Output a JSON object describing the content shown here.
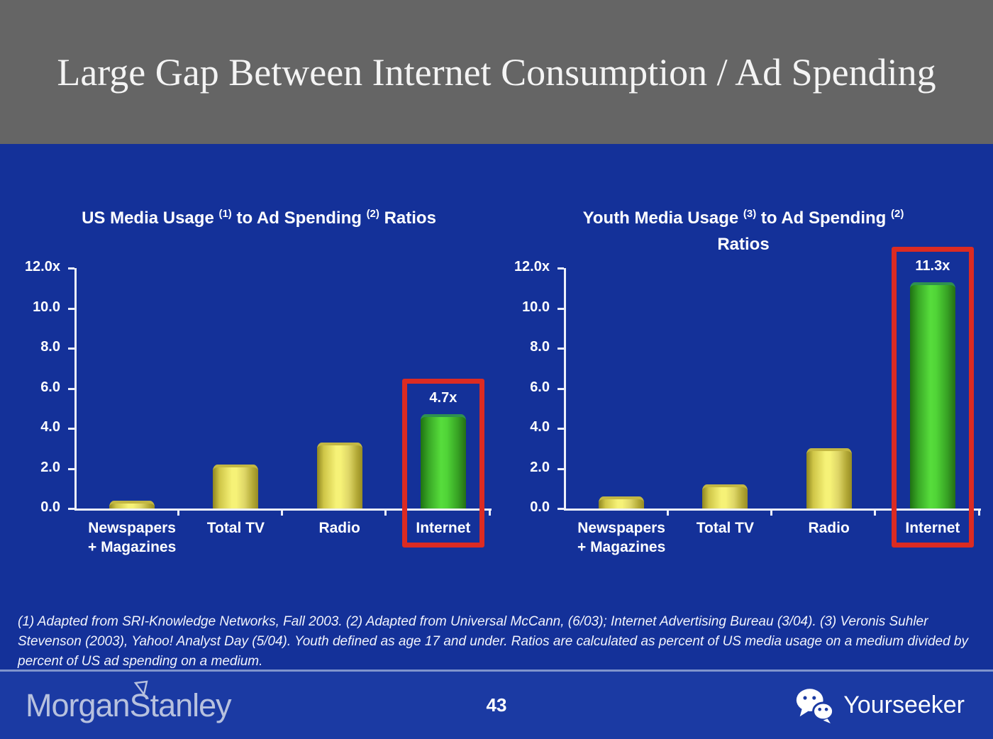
{
  "header": {
    "title": "Large Gap Between Internet Consumption / Ad Spending"
  },
  "footnote": "(1) Adapted from SRI-Knowledge Networks, Fall 2003.  (2) Adapted from Universal McCann, (6/03); Internet Advertising Bureau (3/04). (3) Veronis Suhler Stevenson (2003), Yahoo! Analyst Day (5/04).  Youth defined as age 17 and under.  Ratios are calculated as percent of US media usage on a medium divided by percent of US ad spending on a medium.",
  "footer": {
    "brand_left": {
      "part1": "Morgan",
      "part2": "Stanley"
    },
    "page_number": "43",
    "brand_right": "Yourseeker"
  },
  "colors": {
    "header_gray": "#656565",
    "body_blue": "#143199",
    "footer_blue": "#1B3AA3",
    "bar_yellow": "#F0EC65",
    "bar_green": "#4CCB33",
    "highlight_red": "#DC2B22",
    "axis_white": "#EDF0FA",
    "logo_silver": "#B7C1DE"
  },
  "chart_data": [
    {
      "type": "bar",
      "title": "US Media Usage (1) to Ad Spending (2) Ratios",
      "title_lines": [
        [
          {
            "text": "US Media Usage "
          },
          {
            "sup": "(1)"
          },
          {
            "text": " to Ad Spending "
          },
          {
            "sup": "(2)"
          },
          {
            "text": " Ratios"
          }
        ]
      ],
      "categories": [
        "Newspapers\n+ Magazines",
        "Total TV",
        "Radio",
        "Internet"
      ],
      "values": [
        0.4,
        2.2,
        3.3,
        4.7
      ],
      "highlight_index": 3,
      "highlight_label": "4.7x",
      "xlabel": "",
      "ylabel": "",
      "ylim": [
        0,
        12
      ],
      "grid": false,
      "yticks": [
        {
          "label": "12.0x",
          "value": 12
        },
        {
          "label": "10.0",
          "value": 10
        },
        {
          "label": "8.0",
          "value": 8
        },
        {
          "label": "6.0",
          "value": 6
        },
        {
          "label": "4.0",
          "value": 4
        },
        {
          "label": "2.0",
          "value": 2
        },
        {
          "label": "0.0",
          "value": 0
        }
      ]
    },
    {
      "type": "bar",
      "title": "Youth Media Usage (3) to Ad Spending (2) Ratios",
      "title_lines": [
        [
          {
            "text": "Youth Media Usage "
          },
          {
            "sup": "(3)"
          },
          {
            "text": " to Ad Spending "
          },
          {
            "sup": "(2)"
          }
        ],
        [
          {
            "text": "Ratios"
          }
        ]
      ],
      "categories": [
        "Newspapers\n+ Magazines",
        "Total TV",
        "Radio",
        "Internet"
      ],
      "values": [
        0.6,
        1.2,
        3.0,
        11.3
      ],
      "highlight_index": 3,
      "highlight_label": "11.3x",
      "xlabel": "",
      "ylabel": "",
      "ylim": [
        0,
        12
      ],
      "grid": false,
      "yticks": [
        {
          "label": "12.0x",
          "value": 12
        },
        {
          "label": "10.0",
          "value": 10
        },
        {
          "label": "8.0",
          "value": 8
        },
        {
          "label": "6.0",
          "value": 6
        },
        {
          "label": "4.0",
          "value": 4
        },
        {
          "label": "2.0",
          "value": 2
        },
        {
          "label": "0.0",
          "value": 0
        }
      ]
    }
  ]
}
